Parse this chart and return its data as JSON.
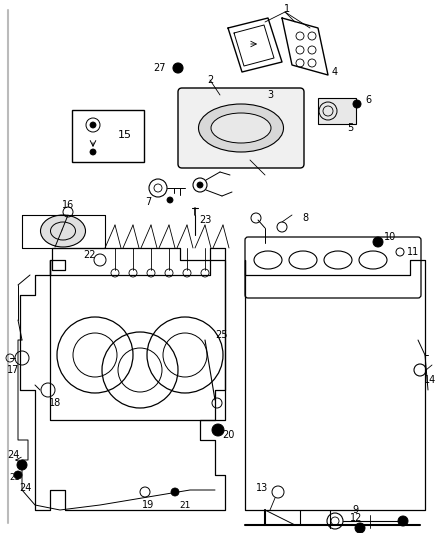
{
  "bg_color": "#ffffff",
  "fig_width": 4.38,
  "fig_height": 5.33,
  "dpi": 100,
  "lc": "#000000",
  "gray1": "#aaaaaa",
  "gray2": "#cccccc",
  "gray3": "#888888",
  "gray_light": "#dddddd",
  "label_fs": 7,
  "border_color": "#aaaaaa"
}
